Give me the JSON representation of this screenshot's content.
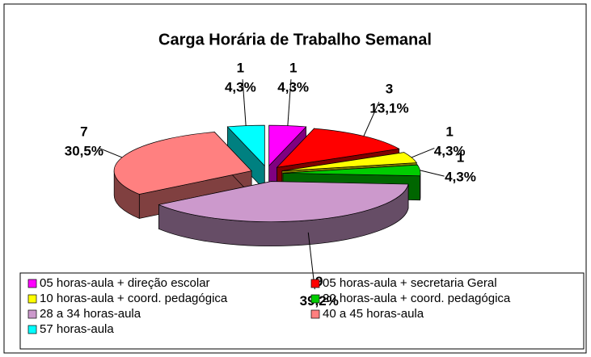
{
  "chart_data": {
    "type": "pie",
    "title": "Carga Horária de Trabalho Semanal",
    "labels": [
      "05 horas-aula + direção escolar",
      "05 horas-aula + secretaria Geral",
      "10 horas-aula + coord. pedagógica",
      "20 horas-aula + coord. pedagógica",
      "28 a 34 horas-aula",
      "40 a 45 horas-aula",
      "57 horas-aula"
    ],
    "values": [
      1,
      3,
      1,
      1,
      9,
      7,
      1
    ],
    "percentages": [
      4.3,
      13.1,
      4.3,
      4.3,
      39.2,
      30.5,
      4.3
    ],
    "percentage_labels": [
      "4,3%",
      "13,1%",
      "4,3%",
      "4,3%",
      "39,2%",
      "30,5%",
      "4,3%"
    ],
    "colors": [
      "#FF00FF",
      "#FF0000",
      "#FFFF00",
      "#00CC00",
      "#CC99CC",
      "#FF8080",
      "#00FFFF"
    ],
    "legend": "bottom"
  }
}
